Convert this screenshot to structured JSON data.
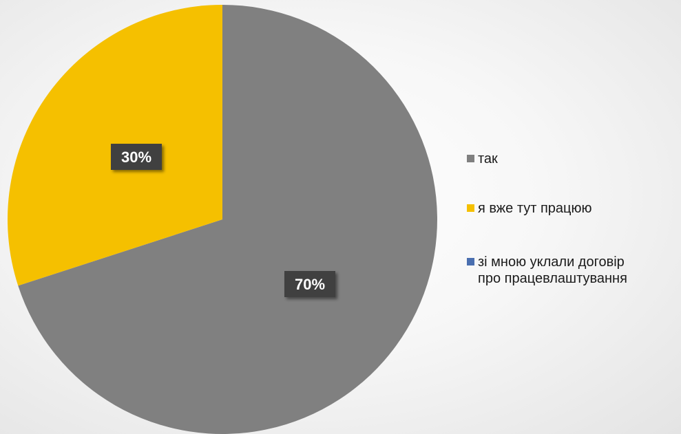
{
  "chart_data": {
    "type": "pie",
    "title": "",
    "legend_position": "right",
    "slices": [
      {
        "label": "так",
        "value": 70,
        "data_label": "70%",
        "color": "#808080"
      },
      {
        "label": "я вже тут працюю",
        "value": 30,
        "data_label": "30%",
        "color": "#f5c000"
      },
      {
        "label": "зі мною уклали договір про працевлаштування",
        "value": 0,
        "data_label": "",
        "color": "#4a6fb0"
      }
    ]
  }
}
